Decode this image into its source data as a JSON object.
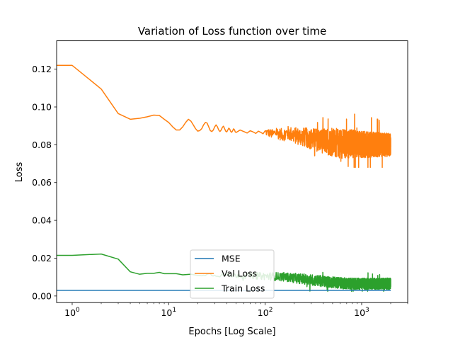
{
  "chart_data": {
    "type": "line",
    "title": "Variation of Loss function over time",
    "xlabel": "Epochs [Log Scale]",
    "ylabel": "Loss",
    "xscale": "log",
    "xlim": [
      0.69,
      3000
    ],
    "ylim": [
      -0.0035,
      0.135
    ],
    "x_ticks": [
      {
        "value": 1,
        "base": "10",
        "exp": "0"
      },
      {
        "value": 10,
        "base": "10",
        "exp": "1"
      },
      {
        "value": 100,
        "base": "10",
        "exp": "2"
      },
      {
        "value": 1000,
        "base": "10",
        "exp": "3"
      }
    ],
    "y_ticks": [
      "0.00",
      "0.02",
      "0.04",
      "0.06",
      "0.08",
      "0.10",
      "0.12"
    ],
    "y_tick_values": [
      0.0,
      0.02,
      0.04,
      0.06,
      0.08,
      0.1,
      0.12
    ],
    "grid": false,
    "legend_position": "bottom-center",
    "series": [
      {
        "name": "MSE",
        "color": "#1f77b4",
        "points": [
          [
            0.69,
            0.003
          ],
          [
            2000,
            0.003
          ]
        ]
      },
      {
        "name": "Val Loss",
        "color": "#ff7f0e",
        "points": [
          [
            0.69,
            0.122
          ],
          [
            1,
            0.122
          ],
          [
            2,
            0.1095
          ],
          [
            3,
            0.0965
          ],
          [
            4,
            0.0935
          ],
          [
            5,
            0.094
          ],
          [
            6,
            0.0948
          ],
          [
            7,
            0.0957
          ],
          [
            8,
            0.0955
          ],
          [
            9,
            0.0935
          ],
          [
            10,
            0.0918
          ],
          [
            11,
            0.0895
          ],
          [
            12,
            0.0878
          ],
          [
            13,
            0.0878
          ],
          [
            14,
            0.0895
          ],
          [
            15,
            0.0918
          ],
          [
            16,
            0.0935
          ],
          [
            17,
            0.0925
          ],
          [
            18,
            0.0905
          ],
          [
            19,
            0.0885
          ],
          [
            20,
            0.0872
          ],
          [
            21,
            0.0875
          ],
          [
            22,
            0.0885
          ],
          [
            23,
            0.0905
          ],
          [
            24,
            0.0918
          ],
          [
            25,
            0.0915
          ],
          [
            26,
            0.0895
          ],
          [
            27,
            0.0875
          ],
          [
            28,
            0.087
          ],
          [
            29,
            0.0878
          ],
          [
            30,
            0.0895
          ],
          [
            31,
            0.0905
          ],
          [
            32,
            0.0895
          ],
          [
            33,
            0.0878
          ],
          [
            34,
            0.087
          ],
          [
            35,
            0.0878
          ],
          [
            36,
            0.0892
          ],
          [
            37,
            0.0898
          ],
          [
            38,
            0.0885
          ],
          [
            39,
            0.0872
          ],
          [
            40,
            0.0868
          ],
          [
            41,
            0.0878
          ],
          [
            42,
            0.0888
          ],
          [
            43,
            0.0882
          ],
          [
            44,
            0.087
          ],
          [
            45,
            0.0866
          ],
          [
            46,
            0.0874
          ],
          [
            47,
            0.0884
          ],
          [
            48,
            0.088
          ],
          [
            49,
            0.0868
          ],
          [
            50,
            0.0865
          ],
          [
            55,
            0.0878
          ],
          [
            60,
            0.087
          ],
          [
            65,
            0.0862
          ],
          [
            70,
            0.0874
          ],
          [
            75,
            0.0868
          ],
          [
            80,
            0.086
          ],
          [
            85,
            0.0872
          ],
          [
            90,
            0.0866
          ],
          [
            95,
            0.0858
          ],
          [
            100,
            0.0868
          ],
          [
            110,
            0.0862
          ],
          [
            120,
            0.0855
          ],
          [
            130,
            0.0866
          ],
          [
            140,
            0.0858
          ],
          [
            150,
            0.0852
          ],
          [
            170,
            0.0862
          ],
          [
            200,
            0.085
          ],
          [
            250,
            0.084
          ],
          [
            300,
            0.0832
          ],
          [
            400,
            0.082
          ],
          [
            500,
            0.0812
          ],
          [
            700,
            0.0805
          ],
          [
            1000,
            0.0802
          ],
          [
            1500,
            0.08
          ],
          [
            2000,
            0.08
          ]
        ],
        "noise": {
          "start_epoch": 100,
          "end_epoch": 2000,
          "amplitude_start": 0.002,
          "amplitude_mid": 0.008,
          "amplitude_end": 0.006,
          "max_value": 0.1,
          "min_value": 0.068
        }
      },
      {
        "name": "Train Loss",
        "color": "#2ca02c",
        "points": [
          [
            0.69,
            0.0215
          ],
          [
            1,
            0.0215
          ],
          [
            2,
            0.0222
          ],
          [
            3,
            0.0195
          ],
          [
            4,
            0.0128
          ],
          [
            5,
            0.0115
          ],
          [
            6,
            0.012
          ],
          [
            7,
            0.012
          ],
          [
            8,
            0.0125
          ],
          [
            9,
            0.0118
          ],
          [
            10,
            0.0118
          ],
          [
            12,
            0.0118
          ],
          [
            14,
            0.0112
          ],
          [
            17,
            0.0115
          ],
          [
            20,
            0.0112
          ],
          [
            25,
            0.0115
          ],
          [
            30,
            0.0112
          ],
          [
            40,
            0.011
          ],
          [
            50,
            0.011
          ],
          [
            70,
            0.0108
          ],
          [
            100,
            0.0105
          ],
          [
            150,
            0.0102
          ],
          [
            200,
            0.0095
          ],
          [
            300,
            0.0085
          ],
          [
            500,
            0.0072
          ],
          [
            800,
            0.0065
          ],
          [
            1200,
            0.0065
          ],
          [
            2000,
            0.0065
          ]
        ],
        "noise": {
          "start_epoch": 20,
          "end_epoch": 2000,
          "amplitude_start": 0.0006,
          "amplitude_mid": 0.003,
          "amplitude_end": 0.003,
          "max_value": 0.0125,
          "min_value": 0.0025
        }
      }
    ]
  }
}
